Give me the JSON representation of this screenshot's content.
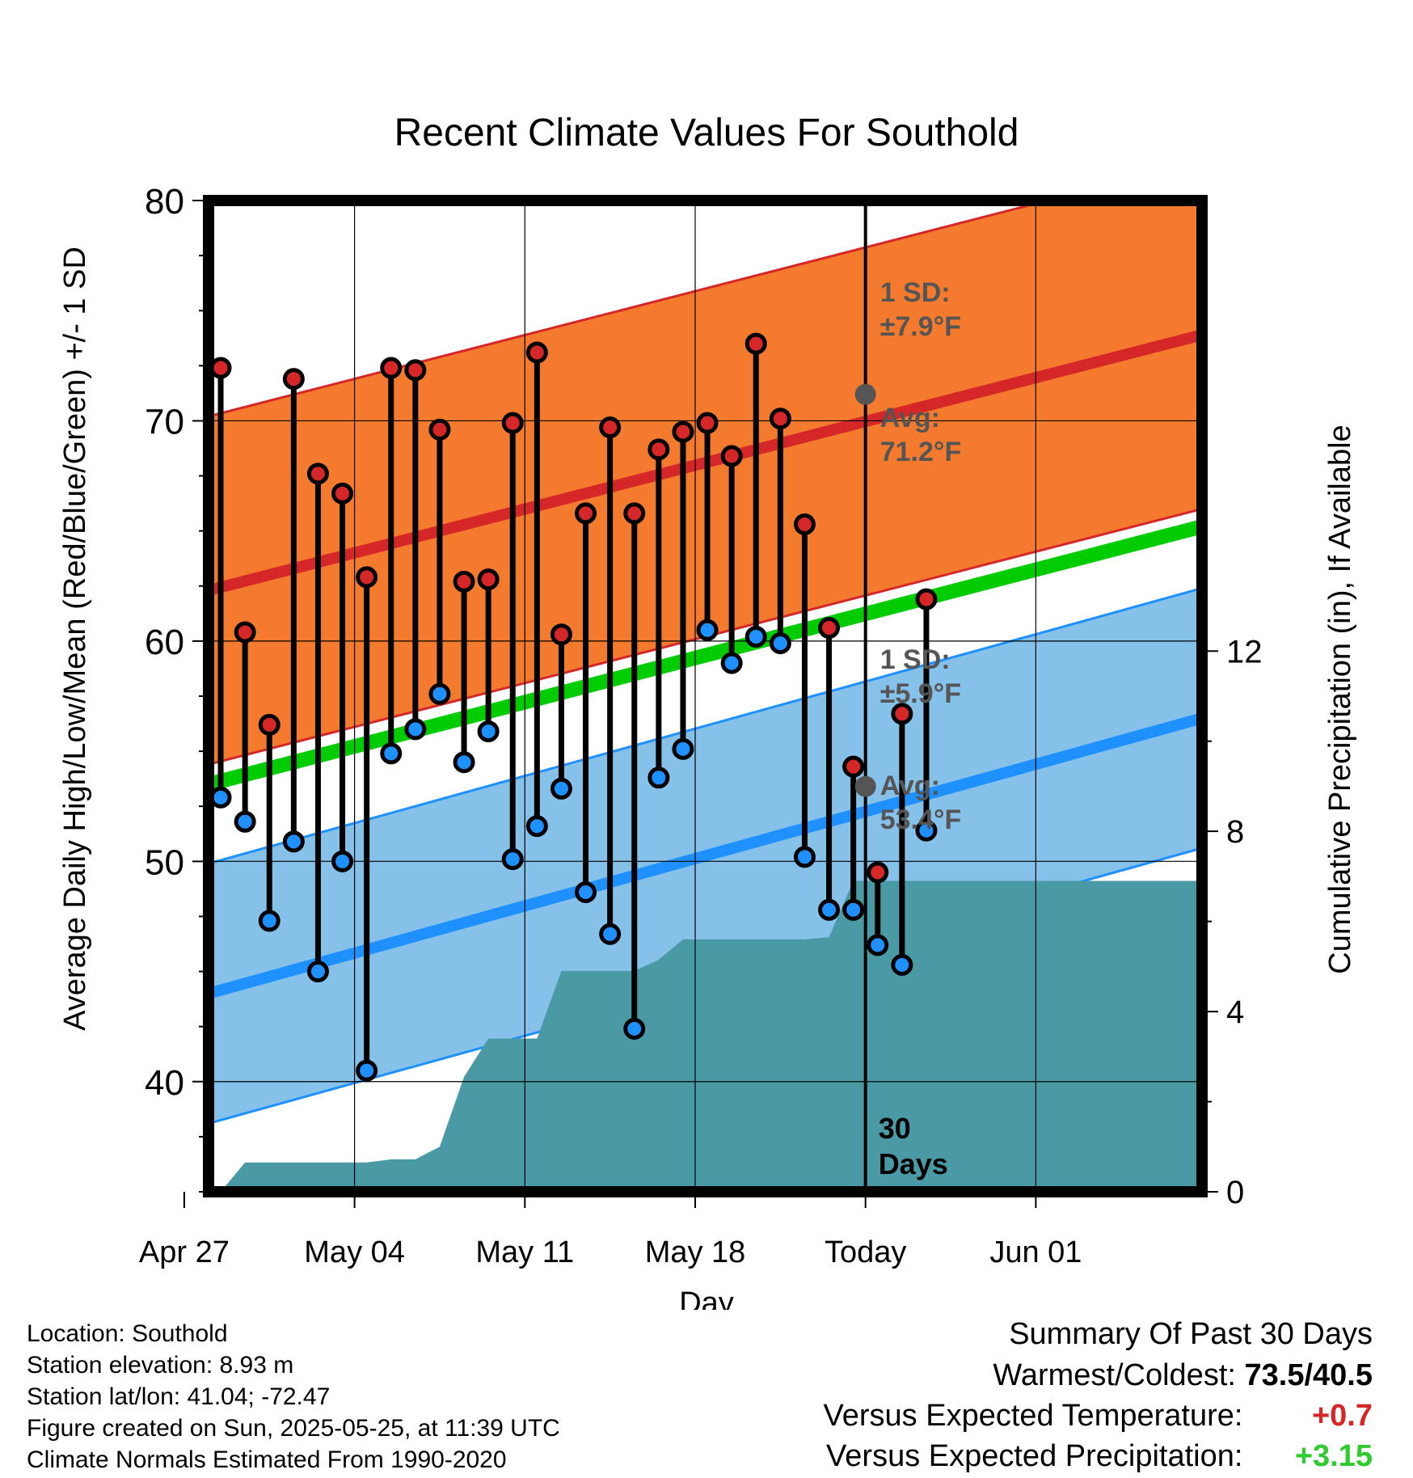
{
  "chart_data": {
    "type": "line",
    "title": "Recent Climate Values For Southold",
    "xlabel": "Day",
    "ylabel": "Average Daily High/Low/Mean (Red/Blue/Green) +/- 1 SD",
    "y2label": "Cumulative Precipitation (in), If Available",
    "ylim": [
      35,
      80
    ],
    "y2lim": [
      0,
      22
    ],
    "yticks": [
      40,
      50,
      60,
      70,
      80
    ],
    "y2ticks": [
      0,
      4,
      8,
      12
    ],
    "xticks": [
      "Apr 27",
      "May 04",
      "May 11",
      "May 18",
      "Today",
      "Jun 01"
    ],
    "grid": true,
    "days_label": "30 Days",
    "high_stats": {
      "sd_label": "1 SD:",
      "sd_value": "±7.9°F",
      "avg_label": "Avg:",
      "avg_value": "71.2°F",
      "today_avg": 71.2,
      "sd": 7.9
    },
    "low_stats": {
      "sd_label": "1 SD:",
      "sd_value": "±5.9°F",
      "avg_label": "Avg:",
      "avg_value": "53.4°F",
      "today_avg": 53.4,
      "sd": 5.9
    },
    "normals": {
      "high": {
        "start": 62.3,
        "end": 73.9,
        "sd": 7.9
      },
      "low": {
        "start": 44.0,
        "end": 56.5,
        "sd": 5.9
      },
      "mean": {
        "start": 53.5,
        "end": 65.2
      }
    },
    "series": [
      {
        "name": "High",
        "values": [
          72.4,
          60.4,
          56.2,
          71.9,
          67.6,
          66.7,
          62.9,
          72.4,
          72.3,
          69.6,
          62.7,
          62.8,
          69.9,
          73.1,
          60.3,
          65.8,
          69.7,
          65.8,
          68.7,
          69.5,
          69.9,
          68.4,
          73.5,
          70.1,
          65.3,
          60.6,
          54.3,
          49.5,
          56.7,
          61.9
        ]
      },
      {
        "name": "Low",
        "values": [
          52.9,
          51.8,
          47.3,
          50.9,
          45.0,
          50.0,
          40.5,
          54.9,
          56.0,
          57.6,
          54.5,
          55.9,
          50.1,
          51.6,
          53.3,
          48.6,
          46.7,
          42.4,
          53.8,
          55.1,
          60.5,
          59.0,
          60.2,
          59.9,
          50.2,
          47.8,
          47.8,
          46.2,
          45.3,
          51.4
        ]
      }
    ],
    "precipitation": {
      "name": "Cumulative Precipitation",
      "values": [
        0.0,
        0.65,
        0.65,
        0.65,
        0.65,
        0.65,
        0.65,
        0.72,
        0.72,
        1.0,
        2.55,
        3.4,
        3.4,
        3.4,
        4.9,
        4.9,
        4.9,
        4.9,
        5.15,
        5.6,
        5.6,
        5.6,
        5.6,
        5.6,
        5.6,
        5.65,
        6.9,
        6.9,
        6.9,
        6.9,
        6.9,
        6.9,
        6.9,
        6.9,
        6.9,
        6.9,
        6.9,
        6.9,
        6.9,
        6.9
      ]
    }
  },
  "info": {
    "location": "Location: Southold",
    "elevation": "Station elevation: 8.93 m",
    "latlon": "Station lat/lon: 41.04; -72.47",
    "created": "Figure created on Sun, 2025-05-25, at 11:39 UTC",
    "normals": "Climate Normals Estimated From 1990-2020"
  },
  "summary": {
    "title": "Summary Of Past 30 Days",
    "warm_cold_label": "Warmest/Coldest:",
    "warm_cold_value": "73.5/40.5",
    "temp_label": "Versus Expected Temperature:",
    "temp_value": "+0.7",
    "precip_label": "Versus Expected Precipitation:",
    "precip_value": "+3.15"
  },
  "colors": {
    "high_band": "#f47b2e",
    "high_line": "#d62728",
    "low_band": "#85c1e9",
    "low_line": "#1e90ff",
    "mean_line": "#00cc00",
    "precip": "#4a9aa5",
    "marker_high": "#d62728",
    "marker_low": "#1e90ff",
    "stats_text": "#555555"
  }
}
